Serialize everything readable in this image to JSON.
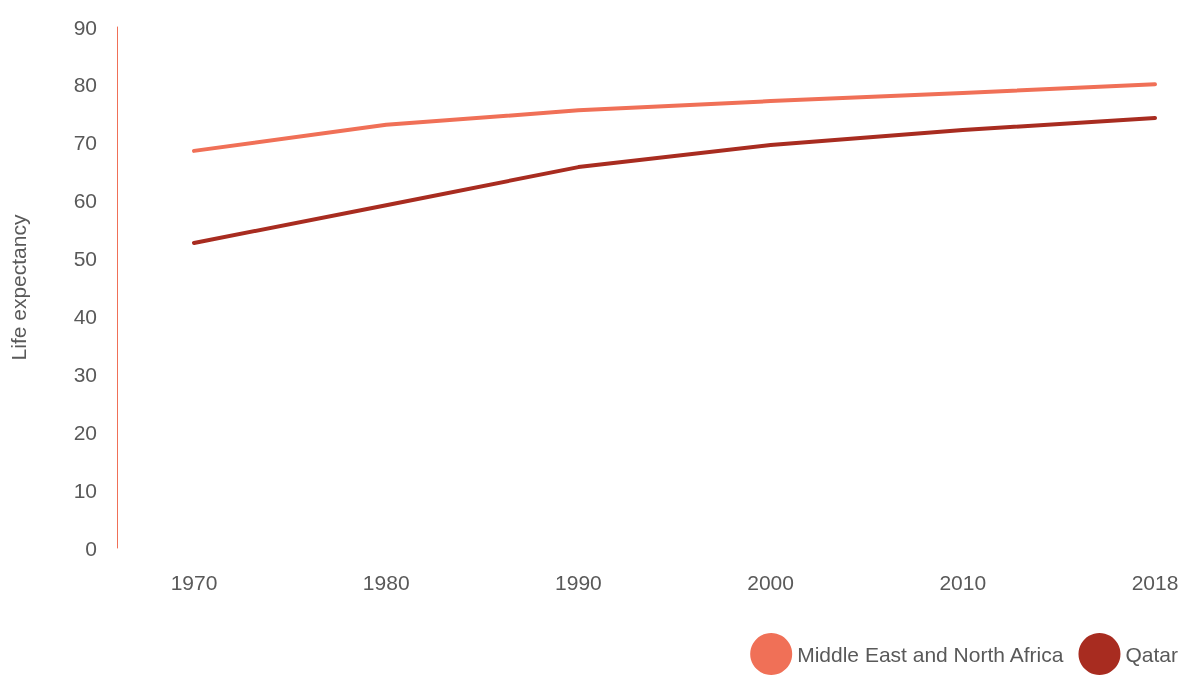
{
  "chart_data": {
    "type": "line",
    "ylabel": "Life expectancy",
    "categories": [
      "1970",
      "1980",
      "1990",
      "2000",
      "2010",
      "2018"
    ],
    "series": [
      {
        "name": "Middle East and North Africa",
        "color": "#f07057",
        "values": [
          68.6,
          73.1,
          75.6,
          77.2,
          78.6,
          80.1
        ]
      },
      {
        "name": "Qatar",
        "color": "#a82c20",
        "values": [
          52.7,
          59.2,
          65.8,
          69.6,
          72.2,
          74.3
        ]
      }
    ],
    "ylim": [
      0,
      90
    ],
    "yticks": [
      0,
      10,
      20,
      30,
      40,
      50,
      60,
      70,
      80,
      90
    ],
    "grid": false,
    "legend": "bottom right",
    "marker": "none",
    "line_style": "solid"
  }
}
